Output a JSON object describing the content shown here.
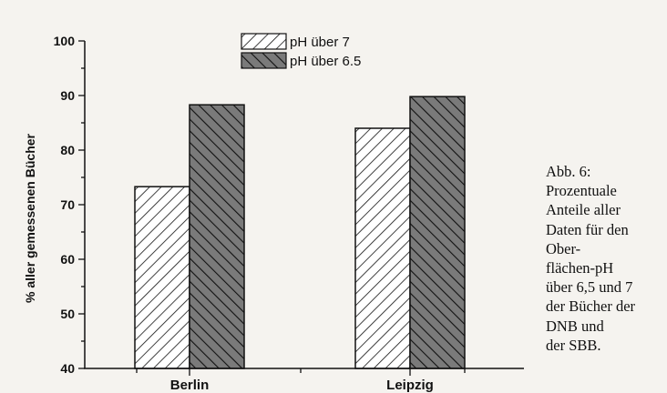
{
  "chart_data": {
    "type": "bar",
    "categories": [
      "Berlin",
      "Leipzig"
    ],
    "series": [
      {
        "name": "pH über 7",
        "values": [
          73.3,
          84.0
        ],
        "pattern": "light-hatch"
      },
      {
        "name": "pH über 6.5",
        "values": [
          88.3,
          89.8
        ],
        "pattern": "dark-hatch"
      }
    ],
    "ylabel": "% aller gemessenen Bücher",
    "ylim": [
      40,
      100
    ],
    "yticks": [
      "40",
      "50",
      "60",
      "70",
      "80",
      "90",
      "100"
    ],
    "legend_position": "top-center",
    "grid": false
  },
  "caption": {
    "lines": [
      "Abb. 6:",
      "Prozentuale",
      "Anteile aller",
      "Daten für den",
      "Ober-",
      "flächen-pH",
      "über 6,5 und 7",
      "der Bücher der",
      "DNB und",
      "der SBB."
    ]
  },
  "colors": {
    "background": "#f5f3ef",
    "ink": "#111111",
    "dark_fill": "#7a7a7a"
  }
}
